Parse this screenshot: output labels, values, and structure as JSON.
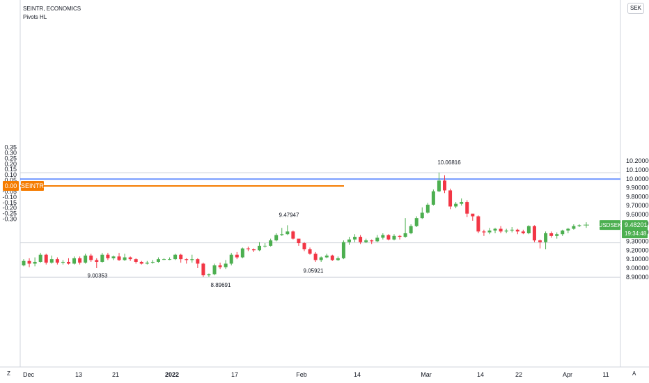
{
  "header": {
    "symbol_line": "SEINTR, ECONOMICS",
    "indicator": "Pivots HL"
  },
  "currency_button": "SEK",
  "corners": {
    "left": "Z",
    "right": "A"
  },
  "colors": {
    "up": "#4caf50",
    "down": "#f23645",
    "seintr_line": "#f57c00",
    "blue_level": "#2962ff",
    "grid": "#d1d4dc"
  },
  "chart_data": {
    "type": "candlestick",
    "left_axis": {
      "label": "SEINTR",
      "ticks": [
        "0.35",
        "0.30",
        "0.25",
        "0.20",
        "0.15",
        "0.10",
        "0.05",
        "0.00",
        "-0.05",
        "-0.10",
        "-0.15",
        "-0.20",
        "-0.25",
        "-0.30"
      ],
      "range": [
        -0.32,
        0.35
      ]
    },
    "right_axis": {
      "label": "SEK",
      "ticks": [
        "10.20000",
        "10.10000",
        "10.00000",
        "9.90000",
        "9.80000",
        "9.70000",
        "9.60000",
        "9.50000",
        "9.40000",
        "9.30000",
        "9.20000",
        "9.10000",
        "9.00000",
        "8.90000"
      ],
      "range": [
        8.86,
        10.26
      ]
    },
    "x_ticks": [
      "Dec",
      "13",
      "21",
      "2022",
      "17",
      "Feb",
      "14",
      "Mar",
      "14",
      "22",
      "Apr",
      "11"
    ],
    "seintr": {
      "label": "SEINTR",
      "value": "0.00"
    },
    "level_line": 9.9975,
    "pivots": [
      {
        "label": "10.06816",
        "value": 10.06816,
        "kind": "high"
      },
      {
        "label": "9.47947",
        "value": 9.47947,
        "kind": "high"
      },
      {
        "label": "9.00353",
        "value": 9.00353,
        "kind": "low"
      },
      {
        "label": "9.05921",
        "value": 9.05921,
        "kind": "low"
      },
      {
        "label": "8.89691",
        "value": 8.89691,
        "kind": "low"
      }
    ],
    "last_price": {
      "symbol": "USDSEK",
      "price": "9.48201",
      "countdown": "19:34:48",
      "value": 9.48201
    },
    "candles": [
      [
        9.03,
        9.08,
        9.1,
        9.02
      ],
      [
        9.08,
        9.05,
        9.11,
        9.01
      ],
      [
        9.05,
        9.07,
        9.12,
        9.02
      ],
      [
        9.07,
        9.15,
        9.17,
        9.06
      ],
      [
        9.15,
        9.06,
        9.16,
        9.04
      ],
      [
        9.06,
        9.1,
        9.14,
        9.05
      ],
      [
        9.1,
        9.06,
        9.12,
        9.04
      ],
      [
        9.06,
        9.07,
        9.09,
        9.04
      ],
      [
        9.07,
        9.05,
        9.11,
        9.04
      ],
      [
        9.05,
        9.11,
        9.13,
        9.04
      ],
      [
        9.11,
        9.06,
        9.13,
        9.04
      ],
      [
        9.06,
        9.14,
        9.16,
        9.05
      ],
      [
        9.14,
        9.09,
        9.16,
        9.07
      ],
      [
        9.09,
        9.07,
        9.11,
        9.0
      ],
      [
        9.07,
        9.15,
        9.17,
        9.06
      ],
      [
        9.15,
        9.11,
        9.17,
        9.09
      ],
      [
        9.11,
        9.13,
        9.14,
        9.09
      ],
      [
        9.13,
        9.09,
        9.17,
        9.08
      ],
      [
        9.09,
        9.12,
        9.16,
        9.08
      ],
      [
        9.12,
        9.1,
        9.13,
        9.08
      ],
      [
        9.1,
        9.07,
        9.11,
        9.05
      ],
      [
        9.07,
        9.05,
        9.08,
        9.04
      ],
      [
        9.05,
        9.06,
        9.08,
        9.04
      ],
      [
        9.06,
        9.07,
        9.09,
        9.05
      ],
      [
        9.07,
        9.1,
        9.12,
        9.06
      ],
      [
        9.1,
        9.1,
        9.11,
        9.09
      ],
      [
        9.1,
        9.1,
        9.12,
        9.09
      ],
      [
        9.1,
        9.15,
        9.16,
        9.09
      ],
      [
        9.15,
        9.1,
        9.16,
        9.06
      ],
      [
        9.1,
        9.09,
        9.11,
        9.05
      ],
      [
        9.09,
        9.1,
        9.15,
        9.06
      ],
      [
        9.1,
        9.05,
        9.11,
        9.0
      ],
      [
        9.05,
        8.92,
        9.06,
        8.9
      ],
      [
        8.92,
        8.93,
        8.94,
        8.9
      ],
      [
        8.93,
        9.03,
        9.05,
        8.92
      ],
      [
        9.03,
        9.01,
        9.06,
        8.99
      ],
      [
        9.01,
        9.05,
        9.09,
        8.99
      ],
      [
        9.05,
        9.15,
        9.17,
        9.03
      ],
      [
        9.15,
        9.12,
        9.18,
        9.1
      ],
      [
        9.12,
        9.22,
        9.23,
        9.11
      ],
      [
        9.22,
        9.21,
        9.24,
        9.19
      ],
      [
        9.21,
        9.2,
        9.22,
        9.18
      ],
      [
        9.2,
        9.25,
        9.29,
        9.19
      ],
      [
        9.25,
        9.25,
        9.28,
        9.23
      ],
      [
        9.25,
        9.31,
        9.33,
        9.24
      ],
      [
        9.31,
        9.37,
        9.39,
        9.3
      ],
      [
        9.37,
        9.38,
        9.45,
        9.36
      ],
      [
        9.38,
        9.41,
        9.48,
        9.37
      ],
      [
        9.41,
        9.33,
        9.42,
        9.32
      ],
      [
        9.33,
        9.28,
        9.31,
        9.25
      ],
      [
        9.28,
        9.21,
        9.29,
        9.19
      ],
      [
        9.21,
        9.16,
        9.23,
        9.15
      ],
      [
        9.16,
        9.09,
        9.18,
        9.07
      ],
      [
        9.09,
        9.12,
        9.13,
        9.07
      ],
      [
        9.12,
        9.14,
        9.16,
        9.11
      ],
      [
        9.14,
        9.09,
        9.15,
        9.08
      ],
      [
        9.09,
        9.11,
        9.13,
        9.08
      ],
      [
        9.11,
        9.29,
        9.31,
        9.1
      ],
      [
        9.29,
        9.32,
        9.35,
        9.26
      ],
      [
        9.32,
        9.35,
        9.38,
        9.29
      ],
      [
        9.35,
        9.29,
        9.37,
        9.27
      ],
      [
        9.29,
        9.31,
        9.33,
        9.28
      ],
      [
        9.31,
        9.3,
        9.32,
        9.27
      ],
      [
        9.3,
        9.34,
        9.37,
        9.29
      ],
      [
        9.34,
        9.37,
        9.39,
        9.32
      ],
      [
        9.37,
        9.32,
        9.38,
        9.31
      ],
      [
        9.32,
        9.36,
        9.38,
        9.31
      ],
      [
        9.36,
        9.35,
        9.37,
        9.32
      ],
      [
        9.35,
        9.39,
        9.56,
        9.34
      ],
      [
        9.39,
        9.47,
        9.49,
        9.38
      ],
      [
        9.47,
        9.56,
        9.58,
        9.46
      ],
      [
        9.56,
        9.62,
        9.68,
        9.55
      ],
      [
        9.62,
        9.71,
        9.73,
        9.61
      ],
      [
        9.71,
        9.86,
        9.88,
        9.7
      ],
      [
        9.86,
        9.98,
        10.07,
        9.85
      ],
      [
        9.98,
        9.87,
        10.04,
        9.84
      ],
      [
        9.87,
        9.69,
        9.89,
        9.66
      ],
      [
        9.69,
        9.72,
        9.74,
        9.67
      ],
      [
        9.72,
        9.74,
        9.78,
        9.7
      ],
      [
        9.74,
        9.61,
        9.76,
        9.57
      ],
      [
        9.61,
        9.58,
        9.6,
        9.53
      ],
      [
        9.58,
        9.41,
        9.59,
        9.39
      ],
      [
        9.41,
        9.4,
        9.43,
        9.36
      ],
      [
        9.4,
        9.42,
        9.45,
        9.38
      ],
      [
        9.42,
        9.44,
        9.45,
        9.39
      ],
      [
        9.44,
        9.41,
        9.47,
        9.39
      ],
      [
        9.41,
        9.42,
        9.44,
        9.39
      ],
      [
        9.42,
        9.43,
        9.46,
        9.4
      ],
      [
        9.43,
        9.41,
        9.44,
        9.38
      ],
      [
        9.41,
        9.39,
        9.43,
        9.38
      ],
      [
        9.39,
        9.47,
        9.48,
        9.38
      ],
      [
        9.47,
        9.31,
        9.48,
        9.29
      ],
      [
        9.31,
        9.29,
        9.32,
        9.22
      ],
      [
        9.29,
        9.39,
        9.41,
        9.21
      ],
      [
        9.39,
        9.36,
        9.41,
        9.34
      ],
      [
        9.36,
        9.38,
        9.4,
        9.33
      ],
      [
        9.38,
        9.42,
        9.43,
        9.36
      ],
      [
        9.42,
        9.44,
        9.45,
        9.39
      ],
      [
        9.44,
        9.47,
        9.49,
        9.43
      ],
      [
        9.47,
        9.48,
        9.49,
        9.46
      ]
    ]
  }
}
